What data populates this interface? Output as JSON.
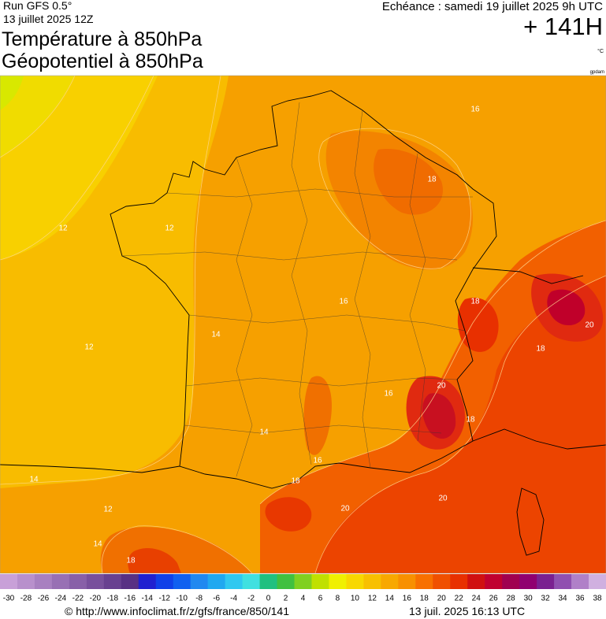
{
  "header": {
    "run": "Run GFS 0.5°",
    "date": "13 juillet 2025 12Z",
    "title1": "Température à 850hPa",
    "title2": "Géopotentiel à 850hPa",
    "echeance": "Echéance : samedi 19 juillet 2025 9h UTC",
    "lead": "+ 141H",
    "unit": "°C",
    "source_tag": "gpdam"
  },
  "map": {
    "contour_labels": [
      "16",
      "18",
      "16",
      "18",
      "20",
      "18",
      "20",
      "18",
      "20",
      "20",
      "18",
      "14",
      "12",
      "14",
      "18",
      "12",
      "12",
      "14",
      "14",
      "12",
      "16",
      "16"
    ]
  },
  "legend": {
    "labels": [
      -30,
      -28,
      -26,
      -24,
      -22,
      -20,
      -18,
      -16,
      -14,
      -12,
      -10,
      -8,
      -6,
      -4,
      -2,
      0,
      2,
      4,
      6,
      8,
      10,
      12,
      14,
      16,
      18,
      20,
      22,
      24,
      26,
      28,
      30,
      32,
      34,
      36,
      38
    ],
    "colors": [
      "#c8a0d8",
      "#b890cc",
      "#a880c0",
      "#9870b4",
      "#8860a8",
      "#78509c",
      "#684090",
      "#583084",
      "#2020d0",
      "#1040e8",
      "#1060f0",
      "#2088f0",
      "#20a8f0",
      "#30c8f0",
      "#40e0e0",
      "#20c080",
      "#40c040",
      "#80d020",
      "#c0e000",
      "#f0f000",
      "#f8d800",
      "#f8c000",
      "#f8a800",
      "#f89000",
      "#f87000",
      "#f05000",
      "#e83000",
      "#d01010",
      "#c00030",
      "#a00050",
      "#900070",
      "#7a2090",
      "#9050b0",
      "#b080c8",
      "#d0b0e0"
    ]
  },
  "footer": {
    "url": "© http://www.infoclimat.fr/z/gfs/france/850/141",
    "timestamp": "13 juil. 2025 16:13 UTC"
  }
}
